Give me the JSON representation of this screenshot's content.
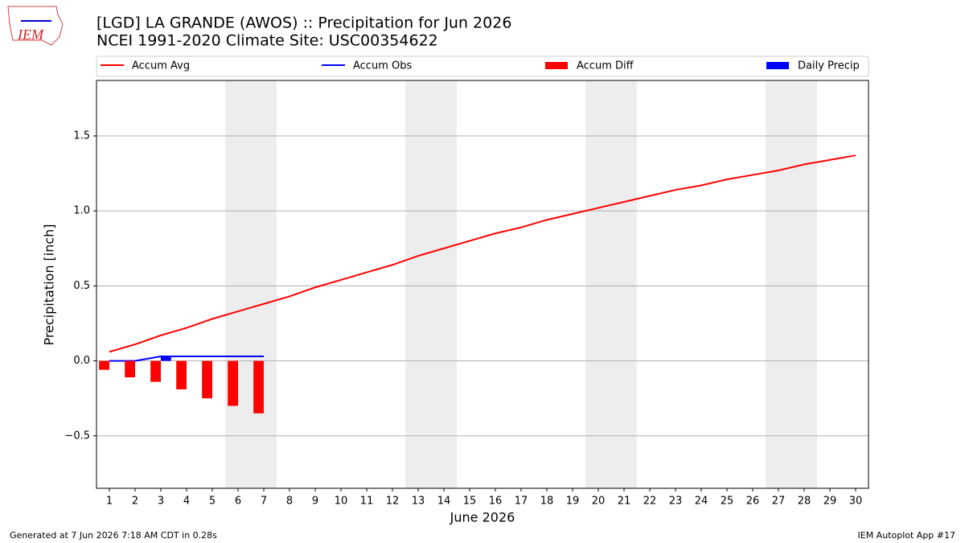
{
  "logo_text": "IEM",
  "chart_data": {
    "type": "combo",
    "title": "[LGD] LA GRANDE (AWOS) :: Precipitation for Jun 2026",
    "subtitle": "NCEI 1991-2020 Climate Site: USC00354622",
    "x_label": "June 2026",
    "y_label": "Precipitation [inch]",
    "x": [
      1,
      2,
      3,
      4,
      5,
      6,
      7,
      8,
      9,
      10,
      11,
      12,
      13,
      14,
      15,
      16,
      17,
      18,
      19,
      20,
      21,
      22,
      23,
      24,
      25,
      26,
      27,
      28,
      29,
      30
    ],
    "xlim": [
      0.5,
      30.5
    ],
    "xticks": [
      1,
      2,
      3,
      4,
      5,
      6,
      7,
      8,
      9,
      10,
      11,
      12,
      13,
      14,
      15,
      16,
      17,
      18,
      19,
      20,
      21,
      22,
      23,
      24,
      25,
      26,
      27,
      28,
      29,
      30
    ],
    "ylim": [
      -0.85,
      1.87
    ],
    "yticks": [
      {
        "value": -0.5,
        "label": "−0.5"
      },
      {
        "value": 0,
        "label": "0.0"
      },
      0.5,
      {
        "value": 1,
        "label": "1.0"
      },
      1.5
    ],
    "grid": true,
    "legend": "top",
    "series": [
      {
        "name": "Accum Avg",
        "type": "line",
        "color": "#ff0000",
        "values": [
          0.06,
          0.11,
          0.17,
          0.22,
          0.28,
          0.33,
          0.38,
          0.43,
          0.49,
          0.54,
          0.59,
          0.64,
          0.7,
          0.75,
          0.8,
          0.85,
          0.89,
          0.94,
          0.98,
          1.02,
          1.06,
          1.1,
          1.14,
          1.17,
          1.21,
          1.24,
          1.27,
          1.31,
          1.34,
          1.37
        ]
      },
      {
        "name": "Accum Obs",
        "type": "line",
        "color": "#0000ff",
        "values": [
          0,
          0,
          0.03,
          0.03,
          0.03,
          0.03,
          0.03,
          null,
          null,
          null,
          null,
          null,
          null,
          null,
          null,
          null,
          null,
          null,
          null,
          null,
          null,
          null,
          null,
          null,
          null,
          null,
          null,
          null,
          null,
          null
        ]
      },
      {
        "name": "Accum Diff",
        "type": "bar",
        "color": "#ff0000",
        "values": [
          -0.06,
          -0.11,
          -0.14,
          -0.19,
          -0.25,
          -0.3,
          -0.35,
          null,
          null,
          null,
          null,
          null,
          null,
          null,
          null,
          null,
          null,
          null,
          null,
          null,
          null,
          null,
          null,
          null,
          null,
          null,
          null,
          null,
          null,
          null
        ]
      },
      {
        "name": "Daily Precip",
        "type": "bar",
        "color": "#0000ff",
        "values": [
          0,
          0,
          0.03,
          0,
          0,
          0,
          0,
          null,
          null,
          null,
          null,
          null,
          null,
          null,
          null,
          null,
          null,
          null,
          null,
          null,
          null,
          null,
          null,
          null,
          null,
          null,
          null,
          null,
          null,
          null
        ]
      }
    ],
    "footer_left": "Generated at 7 Jun 2026 7:18 AM CDT in 0.28s",
    "footer_right": "IEM Autoplot App #17"
  }
}
